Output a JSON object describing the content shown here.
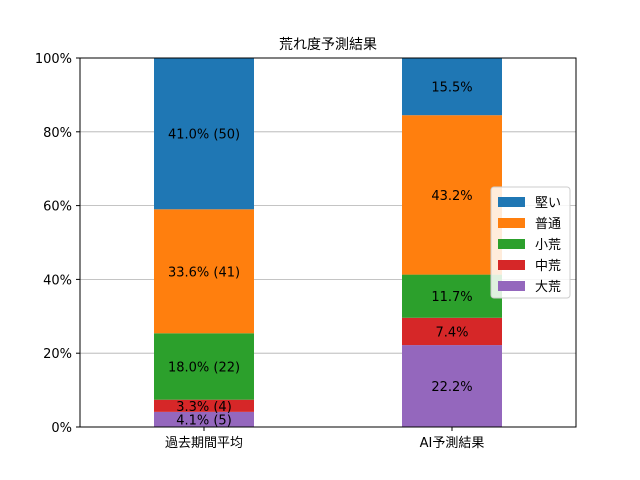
{
  "chart_data": {
    "type": "bar",
    "stacked": true,
    "title": "荒れ度予測結果",
    "xlabel": "",
    "ylabel": "",
    "categories": [
      "過去期間平均",
      "AI予測結果"
    ],
    "ylim": [
      0,
      100
    ],
    "yticks": [
      0,
      20,
      40,
      60,
      80,
      100
    ],
    "ytick_labels": [
      "0%",
      "20%",
      "40%",
      "60%",
      "80%",
      "100%"
    ],
    "grid": "horizontal",
    "legend_position": "right",
    "series": [
      {
        "name": "大荒",
        "color": "#9467bd",
        "values": [
          4.1,
          22.2
        ],
        "labels": [
          "4.1% (5)",
          "22.2%"
        ]
      },
      {
        "name": "中荒",
        "color": "#d62728",
        "values": [
          3.3,
          7.4
        ],
        "labels": [
          "3.3% (4)",
          "7.4%"
        ]
      },
      {
        "name": "小荒",
        "color": "#2ca02c",
        "values": [
          18.0,
          11.7
        ],
        "labels": [
          "18.0% (22)",
          "11.7%"
        ]
      },
      {
        "name": "普通",
        "color": "#ff7f0e",
        "values": [
          33.6,
          43.2
        ],
        "labels": [
          "33.6% (41)",
          "43.2%"
        ]
      },
      {
        "name": "堅い",
        "color": "#1f77b4",
        "values": [
          41.0,
          15.5
        ],
        "labels": [
          "41.0% (50)",
          "15.5%"
        ]
      }
    ],
    "legend_order": [
      "堅い",
      "普通",
      "小荒",
      "中荒",
      "大荒"
    ]
  }
}
